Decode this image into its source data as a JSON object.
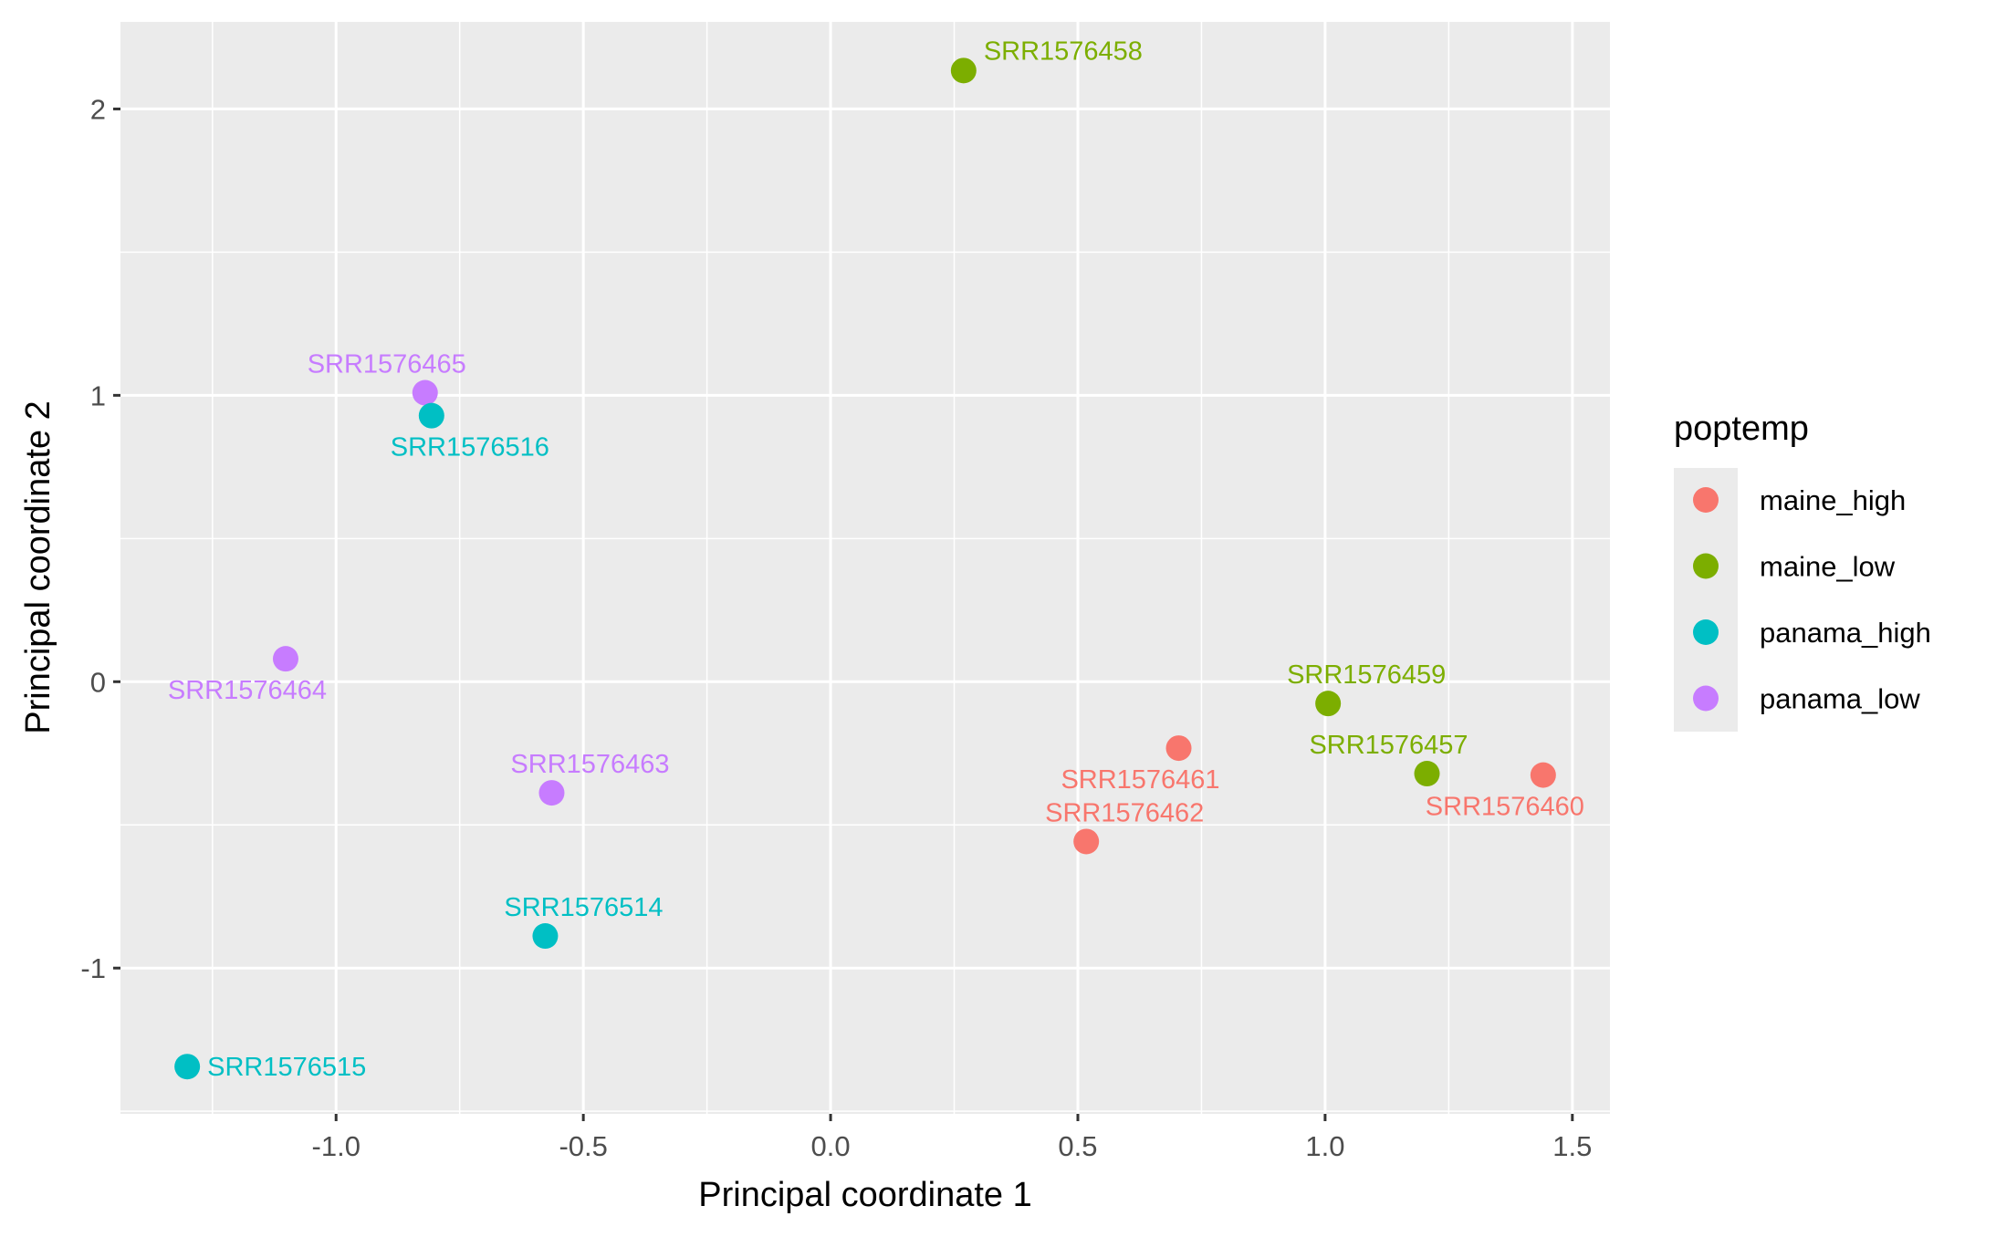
{
  "chart_data": {
    "type": "scatter",
    "title": "",
    "xlabel": "Principal coordinate 1",
    "ylabel": "Principal coordinate 2",
    "xlim": [
      -1.436,
      1.576
    ],
    "ylim": [
      -1.509,
      2.304
    ],
    "x_ticks": [
      -1.0,
      -0.5,
      0.0,
      0.5,
      1.0,
      1.5
    ],
    "x_tick_labels": [
      "-1.0",
      "-0.5",
      "0.0",
      "0.5",
      "1.0",
      "1.5"
    ],
    "y_ticks": [
      -1,
      0,
      1,
      2
    ],
    "y_tick_labels": [
      "-1",
      "0",
      "1",
      "2"
    ],
    "grid": true,
    "legend": {
      "title": "poptemp",
      "placement": "right",
      "entries": [
        {
          "label": "maine_high",
          "color": "#F8766D"
        },
        {
          "label": "maine_low",
          "color": "#7CAE00"
        },
        {
          "label": "panama_high",
          "color": "#00BFC4"
        },
        {
          "label": "panama_low",
          "color": "#C77CFF"
        }
      ]
    },
    "points": [
      {
        "label": "SRR1576458",
        "group": "maine_low",
        "x": 0.269,
        "y": 2.134,
        "label_pos": "top-right-start"
      },
      {
        "label": "SRR1576465",
        "group": "panama_low",
        "x": -0.82,
        "y": 1.009,
        "label_pos": "top-left"
      },
      {
        "label": "SRR1576516",
        "group": "panama_high",
        "x": -0.807,
        "y": 0.929,
        "label_pos": "bottom-right"
      },
      {
        "label": "SRR1576464",
        "group": "panama_low",
        "x": -1.102,
        "y": 0.08,
        "label_pos": "bottom-left"
      },
      {
        "label": "SRR1576463",
        "group": "panama_low",
        "x": -0.564,
        "y": -0.388,
        "label_pos": "top-right"
      },
      {
        "label": "SRR1576514",
        "group": "panama_high",
        "x": -0.577,
        "y": -0.888,
        "label_pos": "top-right"
      },
      {
        "label": "SRR1576515",
        "group": "panama_high",
        "x": -1.301,
        "y": -1.344,
        "label_pos": "right"
      },
      {
        "label": "SRR1576459",
        "group": "maine_low",
        "x": 1.006,
        "y": -0.076,
        "label_pos": "top-right"
      },
      {
        "label": "SRR1576461",
        "group": "maine_high",
        "x": 0.704,
        "y": -0.232,
        "label_pos": "bottom-left"
      },
      {
        "label": "SRR1576457",
        "group": "maine_low",
        "x": 1.206,
        "y": -0.321,
        "label_pos": "top-left"
      },
      {
        "label": "SRR1576460",
        "group": "maine_high",
        "x": 1.441,
        "y": -0.326,
        "label_pos": "bottom-left"
      },
      {
        "label": "SRR1576462",
        "group": "maine_high",
        "x": 0.517,
        "y": -0.558,
        "label_pos": "top-right"
      }
    ]
  }
}
